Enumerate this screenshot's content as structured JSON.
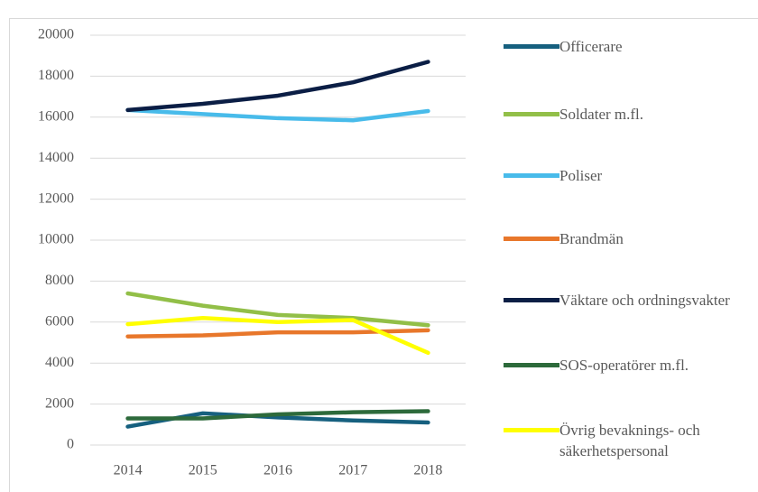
{
  "chart_data": {
    "type": "line",
    "categories": [
      "2014",
      "2015",
      "2016",
      "2017",
      "2018"
    ],
    "series": [
      {
        "name": "Officerare",
        "color": "#16607f",
        "values": [
          900,
          1550,
          1350,
          1200,
          1100
        ]
      },
      {
        "name": "Soldater m.fl.",
        "color": "#92bf48",
        "values": [
          7400,
          6800,
          6350,
          6200,
          5850
        ]
      },
      {
        "name": "Poliser",
        "color": "#48bbea",
        "values": [
          16350,
          16150,
          15950,
          15850,
          16300
        ]
      },
      {
        "name": "Brandmän",
        "color": "#e8772b",
        "values": [
          5300,
          5350,
          5500,
          5500,
          5600
        ]
      },
      {
        "name": "Väktare och ordningsvakter",
        "color": "#0b1e45",
        "values": [
          16350,
          16650,
          17050,
          17700,
          18700
        ]
      },
      {
        "name": "SOS-operatörer m.fl.",
        "color": "#2d6a3b",
        "values": [
          1300,
          1300,
          1500,
          1600,
          1650
        ]
      },
      {
        "name": "Övrig bevaknings- och säkerhetspersonal",
        "color": "#ffff00",
        "values": [
          5900,
          6200,
          6000,
          6100,
          4500
        ]
      }
    ],
    "ylim": [
      0,
      20000
    ],
    "yticks": [
      0,
      2000,
      4000,
      6000,
      8000,
      10000,
      12000,
      14000,
      16000,
      18000,
      20000
    ],
    "grid": true,
    "legend": "right"
  }
}
